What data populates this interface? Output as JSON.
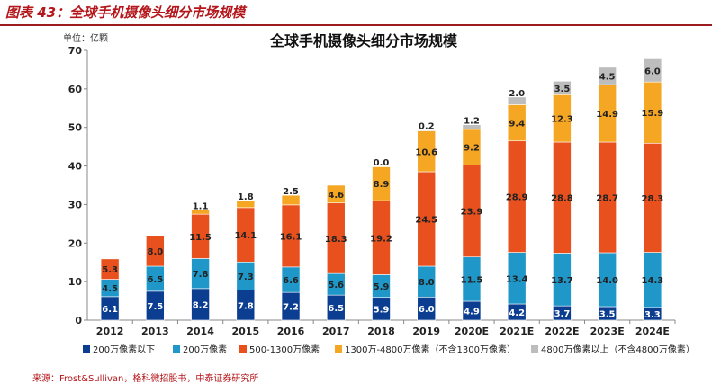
{
  "figure_caption": "图表 43：全球手机摄像头细分市场规模",
  "source_note": "来源：Frost&Sullivan，格科微招股书，中泰证券研究所",
  "chart_data": {
    "type": "bar",
    "stacked": true,
    "title": "全球手机摄像头细分市场规模",
    "unit_label": "单位：亿颗",
    "xlabel": "",
    "ylabel": "",
    "ylim": [
      0,
      70
    ],
    "yticks": [
      0,
      10,
      20,
      30,
      40,
      50,
      60,
      70
    ],
    "grid": false,
    "legend_position": "bottom",
    "categories": [
      "2012",
      "2013",
      "2014",
      "2015",
      "2016",
      "2017",
      "2018",
      "2019",
      "2020E",
      "2021E",
      "2022E",
      "2023E",
      "2024E"
    ],
    "series": [
      {
        "name": "200万像素以下",
        "color": "#0b3d91",
        "values": [
          6.1,
          7.5,
          8.2,
          7.8,
          7.2,
          6.5,
          5.9,
          6.0,
          4.9,
          4.2,
          3.7,
          3.5,
          3.3
        ]
      },
      {
        "name": "200万像素",
        "color": "#1f97c9",
        "values": [
          4.5,
          6.5,
          7.8,
          7.3,
          6.6,
          5.6,
          5.9,
          8.0,
          11.5,
          13.4,
          13.7,
          14.0,
          14.3
        ]
      },
      {
        "name": "500-1300万像素",
        "color": "#e8501e",
        "values": [
          5.3,
          8.0,
          11.5,
          14.1,
          16.1,
          18.3,
          19.2,
          24.5,
          23.9,
          28.9,
          28.8,
          28.7,
          28.3
        ]
      },
      {
        "name": "1300万-4800万像素（不含1300万像素）",
        "color": "#f5a623",
        "values": [
          null,
          null,
          1.1,
          1.8,
          2.5,
          4.6,
          8.9,
          10.6,
          9.2,
          9.4,
          12.3,
          14.9,
          15.9
        ]
      },
      {
        "name": "4800万像素以上（不含4800万像素）",
        "color": "#bdbdbd",
        "values": [
          null,
          null,
          null,
          null,
          null,
          null,
          0.0,
          0.2,
          1.2,
          2.0,
          3.5,
          4.5,
          6.0
        ]
      }
    ]
  }
}
